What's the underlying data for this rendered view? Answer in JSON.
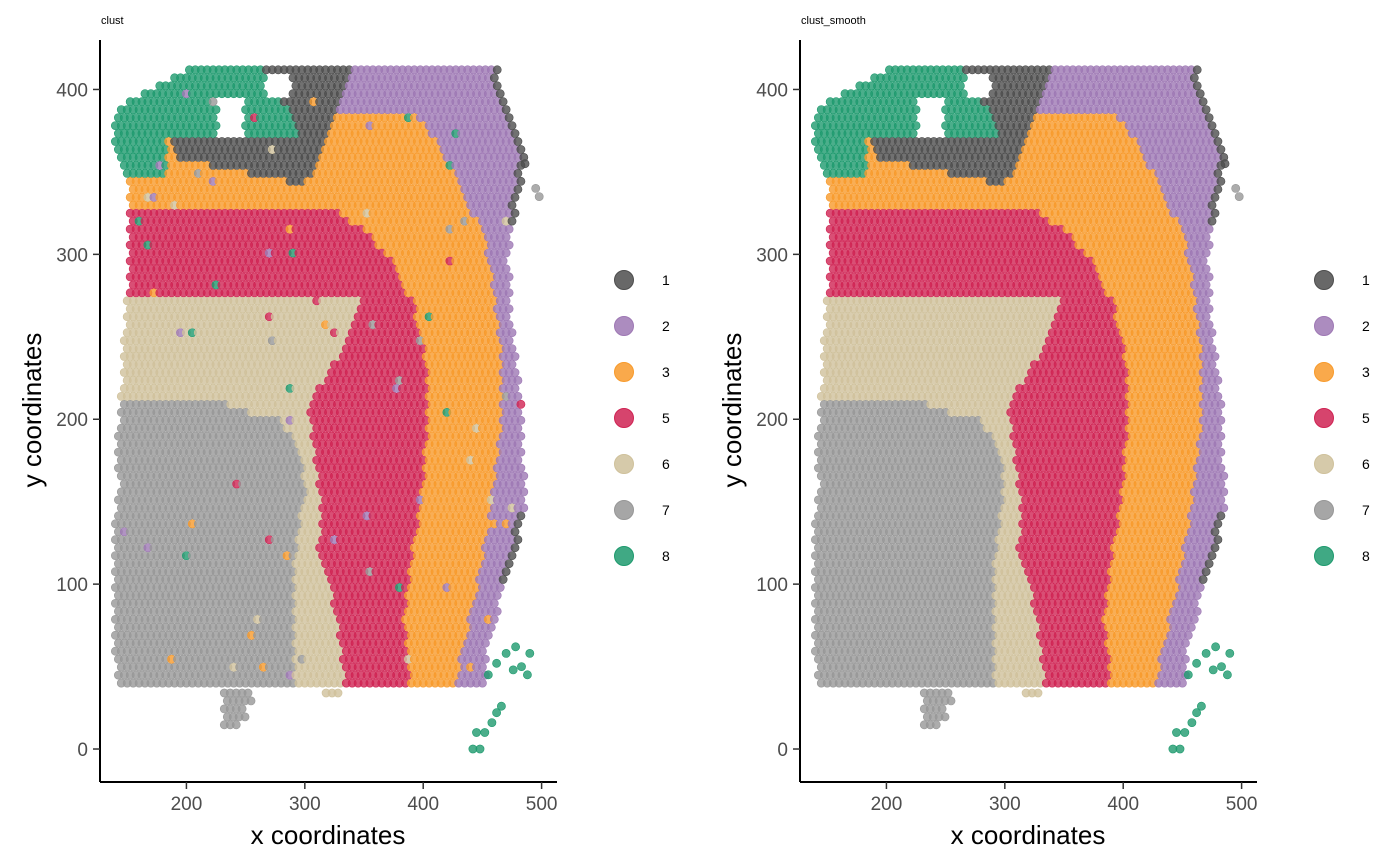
{
  "chart_data": [
    {
      "type": "scatter",
      "title": "clust",
      "xlabel": "x coordinates",
      "ylabel": "y coordinates",
      "xlim": [
        127,
        513
      ],
      "ylim": [
        -20,
        430
      ],
      "xticks": [
        200,
        300,
        400,
        500
      ],
      "yticks": [
        0,
        100,
        200,
        300,
        400
      ],
      "grid": false,
      "legend": "right",
      "smoothed": false
    },
    {
      "type": "scatter",
      "title": "clust_smooth",
      "xlabel": "x coordinates",
      "ylabel": "y coordinates",
      "xlim": [
        127,
        513
      ],
      "ylim": [
        -20,
        430
      ],
      "xticks": [
        200,
        300,
        400,
        500
      ],
      "yticks": [
        0,
        100,
        200,
        300,
        400
      ],
      "grid": false,
      "legend": "right",
      "smoothed": true
    }
  ],
  "legend": [
    {
      "label": "1",
      "color": "#4d4d4d"
    },
    {
      "label": "2",
      "color": "#9e78b4"
    },
    {
      "label": "3",
      "color": "#f89a2b"
    },
    {
      "label": "5",
      "color": "#cf2353"
    },
    {
      "label": "6",
      "color": "#cfc19b"
    },
    {
      "label": "7",
      "color": "#979797"
    },
    {
      "label": "8",
      "color": "#1e9a6e"
    }
  ]
}
